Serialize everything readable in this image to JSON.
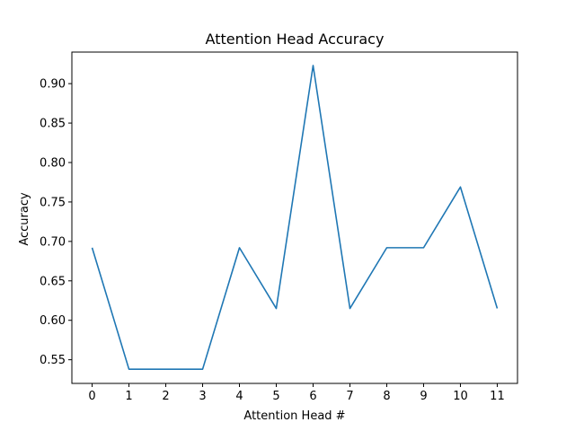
{
  "chart_data": {
    "type": "line",
    "title": "Attention Head Accuracy",
    "xlabel": "Attention Head #",
    "ylabel": "Accuracy",
    "x": [
      0,
      1,
      2,
      3,
      4,
      5,
      6,
      7,
      8,
      9,
      10,
      11
    ],
    "xticks": [
      "0",
      "1",
      "2",
      "3",
      "4",
      "5",
      "6",
      "7",
      "8",
      "9",
      "10",
      "11"
    ],
    "yticks": [
      "0.55",
      "0.60",
      "0.65",
      "0.70",
      "0.75",
      "0.80",
      "0.85",
      "0.90"
    ],
    "ylim": [
      0.52,
      0.94
    ],
    "xlim": [
      -0.55,
      11.55
    ],
    "series": [
      {
        "color": "#1f77b4",
        "values": [
          0.692,
          0.538,
          0.538,
          0.538,
          0.692,
          0.615,
          0.923,
          0.615,
          0.692,
          0.692,
          0.769,
          0.615
        ]
      }
    ],
    "grid": false,
    "legend": "none"
  }
}
